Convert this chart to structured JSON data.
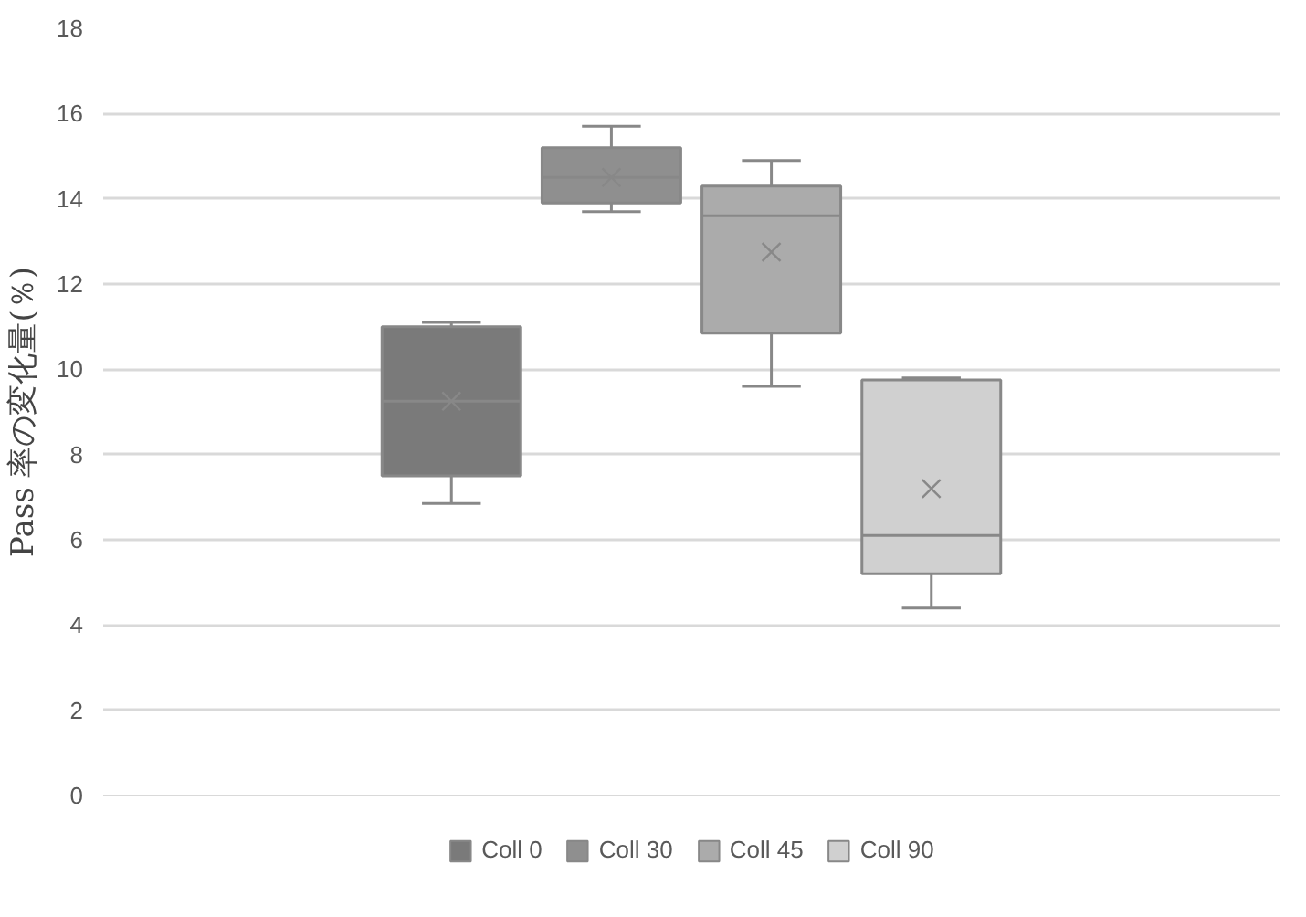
{
  "chart_data": {
    "type": "box",
    "ylabel": "Pass 率の変化量(％)",
    "categories": [
      null
    ],
    "ylim": [
      0,
      18
    ],
    "yticks": [
      0,
      2,
      4,
      6,
      8,
      10,
      12,
      14,
      16,
      18
    ],
    "grid": "y",
    "legend": "bottom",
    "series": [
      {
        "name": "Coll 0",
        "color": "#7a7a7a",
        "boxes": [
          {
            "low": 6.85,
            "q1": 7.5,
            "median": 9.25,
            "q3": 11.0,
            "high": 11.1,
            "mean": 9.25
          }
        ]
      },
      {
        "name": "Coll 30",
        "color": "#8f8f8f",
        "boxes": [
          {
            "low": 13.7,
            "q1": 13.9,
            "median": 14.5,
            "q3": 15.2,
            "high": 15.7,
            "mean": 14.5
          }
        ]
      },
      {
        "name": "Coll 45",
        "color": "#ababab",
        "boxes": [
          {
            "low": 9.6,
            "q1": 10.85,
            "median": 13.6,
            "q3": 14.3,
            "high": 14.9,
            "mean": 12.75
          }
        ]
      },
      {
        "name": "Coll 90",
        "color": "#d0d0d0",
        "boxes": [
          {
            "low": 4.4,
            "q1": 5.2,
            "median": 6.1,
            "q3": 9.75,
            "high": 9.8,
            "mean": 7.2
          }
        ]
      }
    ]
  }
}
